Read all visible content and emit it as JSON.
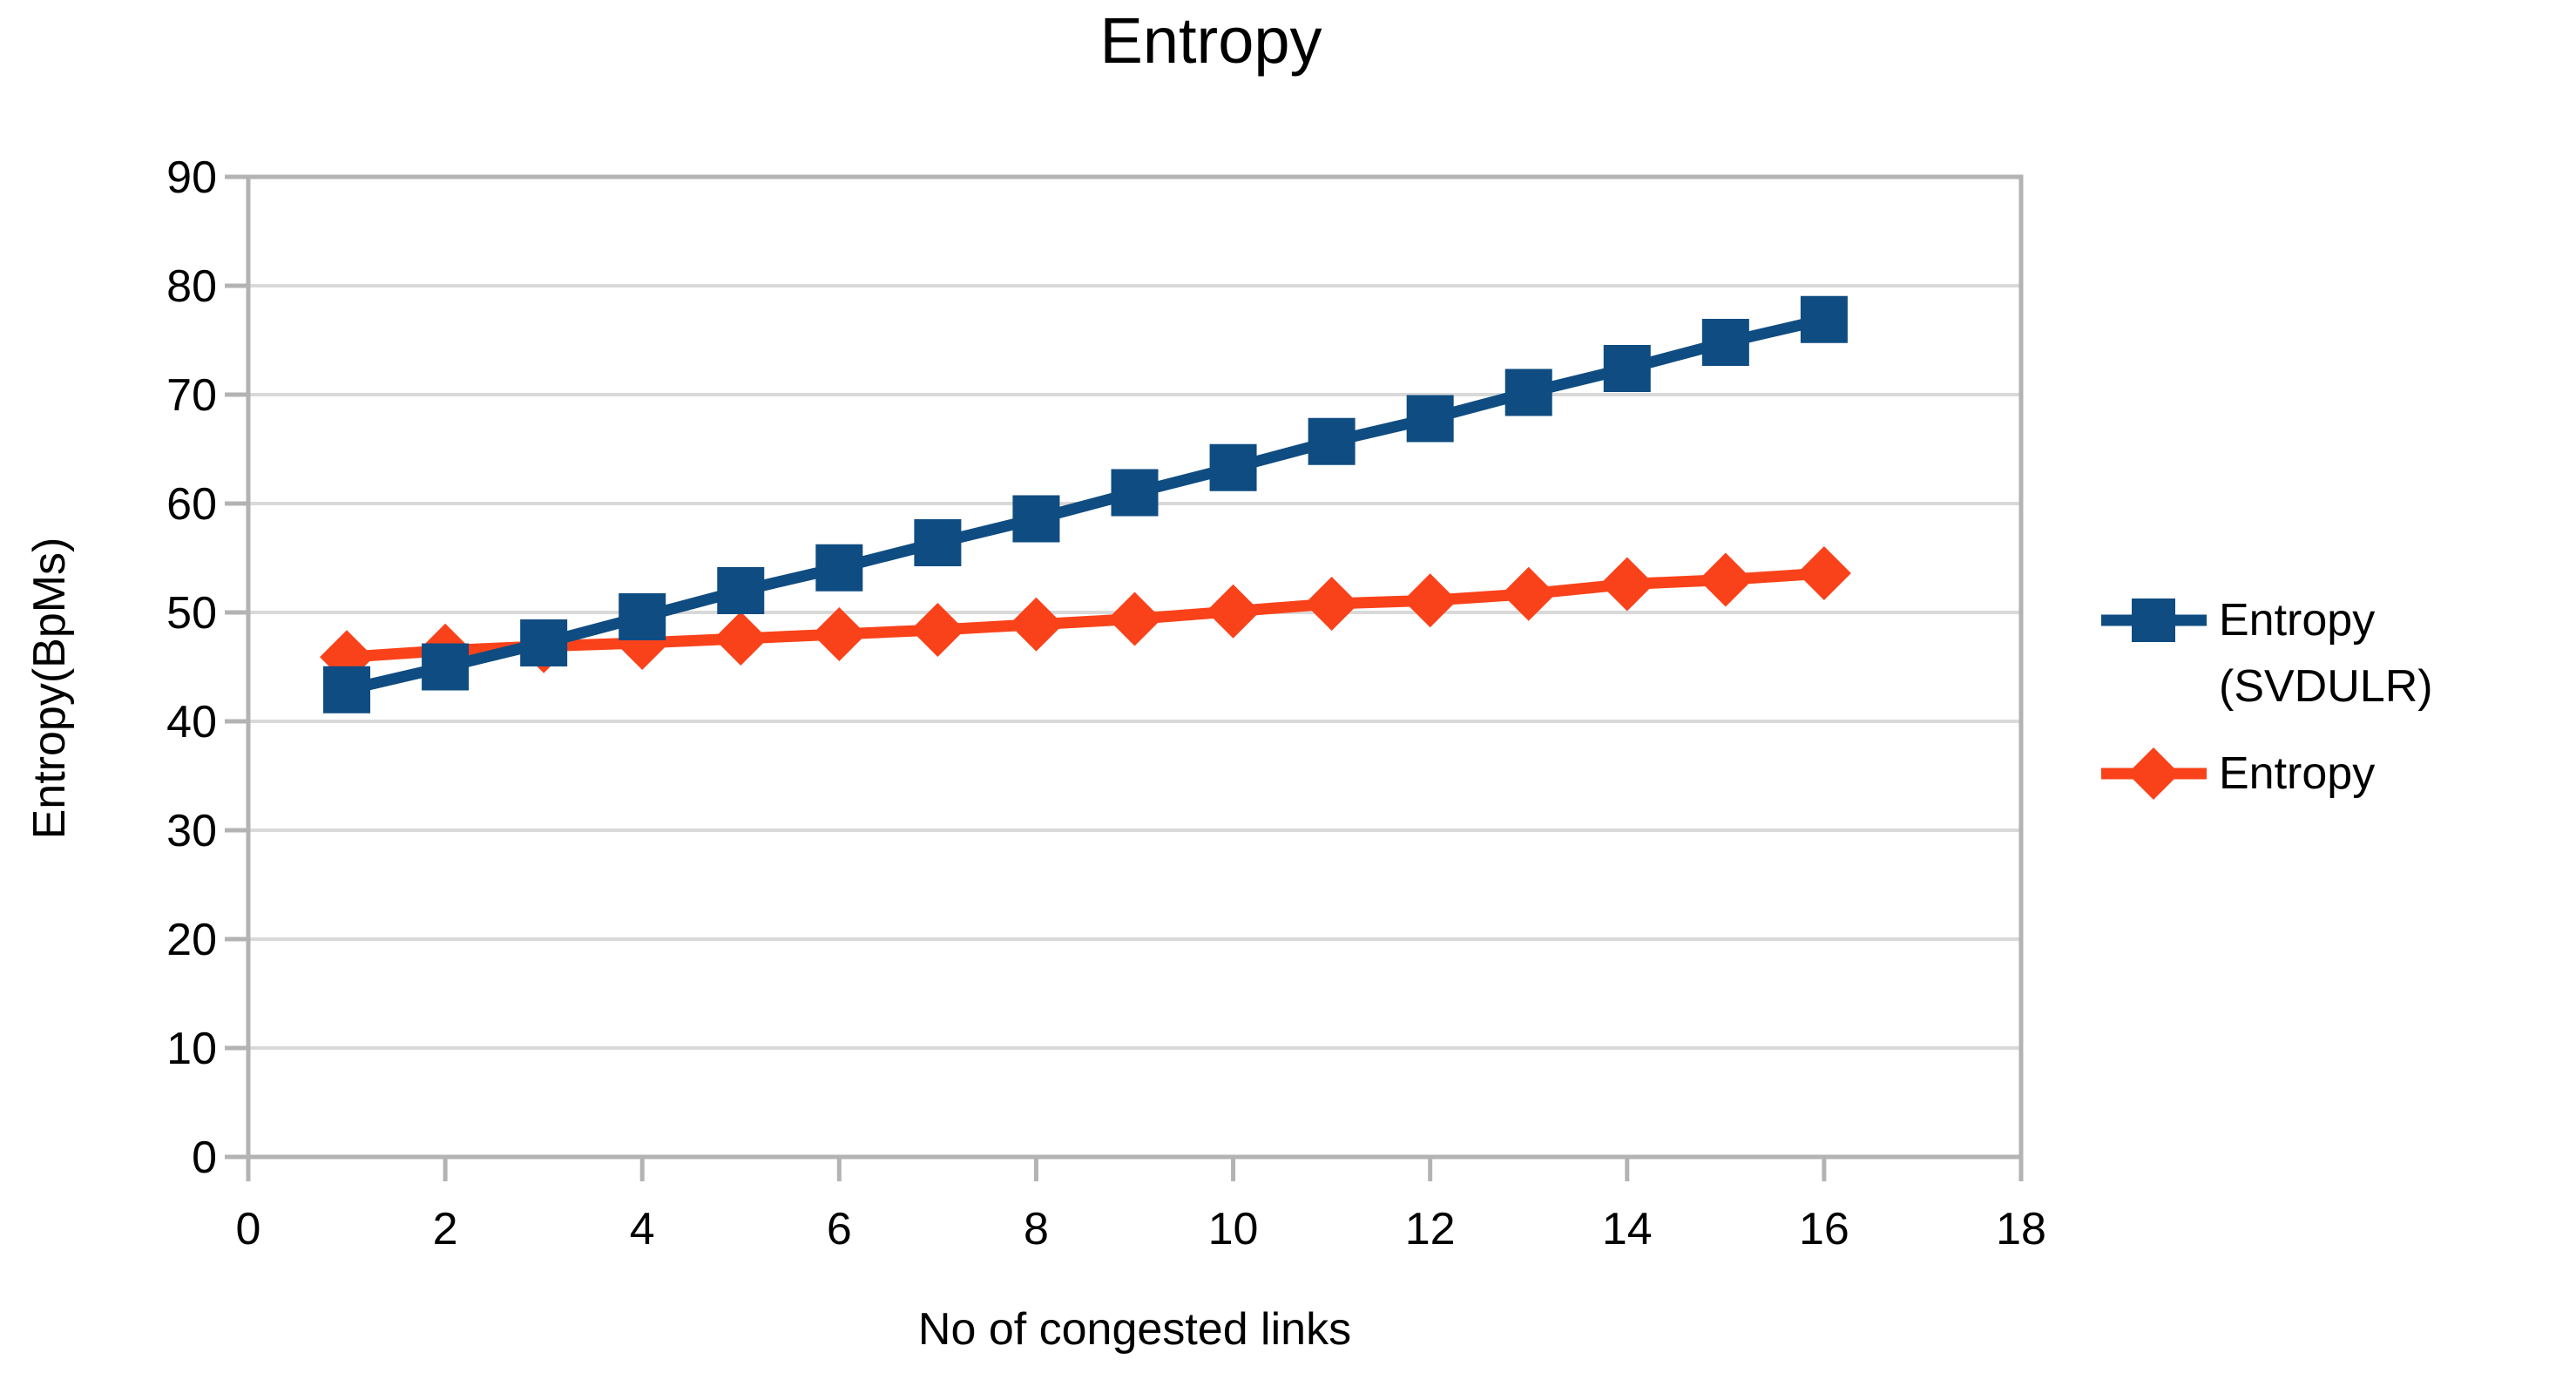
{
  "chart_data": {
    "type": "line",
    "title": "Entropy",
    "xlabel": "No of congested links",
    "ylabel": "Entropy(BpMs)",
    "xlim": [
      0,
      18
    ],
    "ylim": [
      0,
      90
    ],
    "xticks": [
      0,
      2,
      4,
      6,
      8,
      10,
      12,
      14,
      16,
      18
    ],
    "yticks": [
      0,
      10,
      20,
      30,
      40,
      50,
      60,
      70,
      80,
      90
    ],
    "grid": "horizontal-only",
    "legend_position": "right",
    "x": [
      1,
      2,
      3,
      4,
      5,
      6,
      7,
      8,
      9,
      10,
      11,
      12,
      13,
      14,
      15,
      16
    ],
    "series": [
      {
        "name": "Entropy (SVDULR)",
        "marker": "square",
        "color": "#0F4C81",
        "values": [
          42.9,
          45.0,
          47.2,
          49.6,
          52.0,
          54.1,
          56.4,
          58.6,
          61.0,
          63.3,
          65.7,
          67.8,
          70.2,
          72.4,
          74.8,
          76.9
        ]
      },
      {
        "name": "Entropy",
        "marker": "diamond",
        "color": "#FA421A",
        "values": [
          45.9,
          46.5,
          46.9,
          47.2,
          47.6,
          48.0,
          48.4,
          48.9,
          49.4,
          50.1,
          50.8,
          51.1,
          51.7,
          52.6,
          53.0,
          53.6
        ]
      }
    ],
    "styles": {
      "gridline_color": "#D9D9D9",
      "axis_color": "#B3B3B3",
      "text_color": "#000000",
      "background": "#FFFFFF"
    }
  }
}
